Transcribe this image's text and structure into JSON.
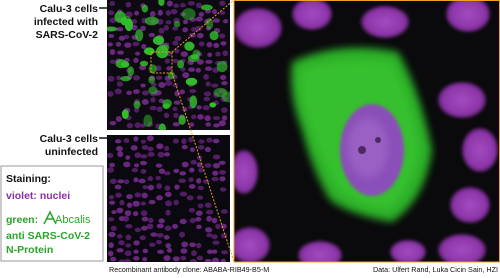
{
  "labels": {
    "infected": [
      "Calu-3 cells",
      "infected with",
      "SARS-CoV-2"
    ],
    "uninfected": [
      "Calu-3 cells",
      "uninfected"
    ]
  },
  "legend": {
    "title": "Staining:",
    "violet": "violet: nuclei",
    "green_prefix": "green:",
    "logo": "Abcalis",
    "green_lines": [
      "anti SARS-CoV-2",
      "N-Protein"
    ]
  },
  "footer": {
    "clone": "Recombinant antibody clone: ABABA-RIB49-B5-M",
    "credit": "Data: Ulfert Rand, Luka Cicin Sain, HZI"
  }
}
